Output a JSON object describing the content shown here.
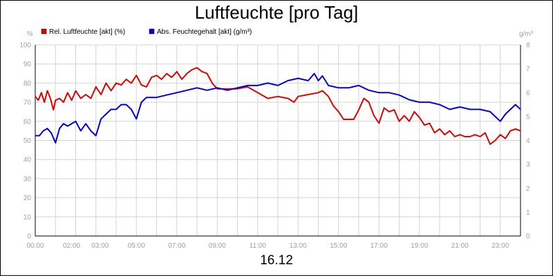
{
  "chart_data": {
    "type": "line",
    "title": "Luftfeuchte [pro Tag]",
    "date": "16.12",
    "y_left_unit": "%",
    "y_right_unit": "g/m³",
    "ylim_left": [
      0,
      100
    ],
    "ylim_right": [
      0,
      8
    ],
    "grid": true,
    "legend_position": "top-left",
    "x_ticks": [
      "00:00",
      "02:00",
      "03:00",
      "05:00",
      "07:00",
      "09:00",
      "11:00",
      "13:00",
      "15:00",
      "17:00",
      "19:00",
      "21:00",
      "23:00"
    ],
    "x_tick_hours": [
      0,
      2,
      3,
      5,
      7,
      9,
      11,
      13,
      15,
      17,
      19,
      21,
      23
    ],
    "y_ticks_left": [
      "0",
      "10",
      "20",
      "30",
      "40",
      "50",
      "60",
      "70",
      "80",
      "90",
      "100"
    ],
    "y_ticks_right": [
      "0",
      "1",
      "2",
      "3",
      "4",
      "5",
      "6",
      "7",
      "8"
    ],
    "series": [
      {
        "name": "Rel. Luftfeuchte [akt] (%)",
        "axis": "left",
        "color": "#e00000",
        "x": [
          0.0,
          0.15,
          0.3,
          0.45,
          0.6,
          0.75,
          0.9,
          1.0,
          1.2,
          1.4,
          1.6,
          1.8,
          2.0,
          2.25,
          2.5,
          2.75,
          3.0,
          3.25,
          3.5,
          3.75,
          4.0,
          4.25,
          4.5,
          4.75,
          5.0,
          5.25,
          5.5,
          5.75,
          6.0,
          6.25,
          6.5,
          6.75,
          7.0,
          7.25,
          7.5,
          7.75,
          8.0,
          8.25,
          8.5,
          8.75,
          9.0,
          9.5,
          10.0,
          10.5,
          11.0,
          11.5,
          12.0,
          12.5,
          12.8,
          13.0,
          13.5,
          14.0,
          14.2,
          14.5,
          14.75,
          15.0,
          15.25,
          15.5,
          15.75,
          16.0,
          16.25,
          16.5,
          16.75,
          17.0,
          17.25,
          17.5,
          17.75,
          18.0,
          18.25,
          18.5,
          18.75,
          19.0,
          19.25,
          19.5,
          19.75,
          20.0,
          20.25,
          20.5,
          20.75,
          21.0,
          21.25,
          21.5,
          21.75,
          22.0,
          22.25,
          22.5,
          22.75,
          23.0,
          23.25,
          23.5,
          23.75,
          24.0
        ],
        "values": [
          73,
          71,
          75,
          70,
          76,
          72,
          66,
          71,
          72,
          70,
          75,
          71,
          76,
          72,
          74,
          72,
          78,
          74,
          80,
          76,
          80,
          79,
          82,
          80,
          84,
          79,
          78,
          83,
          84,
          82,
          85,
          83,
          86,
          82,
          85,
          87,
          88,
          86,
          85,
          80,
          77,
          77,
          77,
          78,
          75,
          72,
          73,
          72,
          70,
          73,
          74,
          75,
          76,
          73,
          68,
          65,
          61,
          61,
          61,
          66,
          72,
          70,
          63,
          59,
          67,
          65,
          66,
          60,
          63,
          60,
          65,
          62,
          58,
          59,
          54,
          56,
          53,
          55,
          52,
          53,
          52,
          52,
          53,
          52,
          54,
          48,
          50,
          53,
          51,
          55,
          56,
          55
        ]
      },
      {
        "name": "Abs. Feuchtegehalt [akt] (g/m³)",
        "axis": "right",
        "color": "#0000e0",
        "x": [
          0.0,
          0.2,
          0.4,
          0.6,
          0.8,
          1.0,
          1.2,
          1.4,
          1.6,
          1.8,
          2.0,
          2.25,
          2.5,
          2.75,
          3.0,
          3.25,
          3.5,
          3.75,
          4.0,
          4.25,
          4.5,
          4.75,
          5.0,
          5.25,
          5.5,
          5.75,
          6.0,
          6.5,
          7.0,
          7.5,
          8.0,
          8.5,
          9.0,
          9.5,
          10.0,
          10.5,
          11.0,
          11.5,
          12.0,
          12.5,
          13.0,
          13.5,
          13.8,
          14.0,
          14.2,
          14.5,
          15.0,
          15.5,
          16.0,
          16.5,
          17.0,
          17.5,
          18.0,
          18.5,
          19.0,
          19.5,
          20.0,
          20.5,
          21.0,
          21.5,
          22.0,
          22.5,
          22.75,
          23.0,
          23.25,
          23.5,
          23.75,
          24.0
        ],
        "values": [
          4.2,
          4.2,
          4.4,
          4.5,
          4.3,
          3.9,
          4.5,
          4.7,
          4.6,
          4.7,
          4.8,
          4.4,
          4.7,
          4.4,
          4.2,
          4.9,
          5.1,
          5.3,
          5.3,
          5.5,
          5.5,
          5.3,
          4.9,
          5.6,
          5.8,
          5.8,
          5.8,
          5.9,
          6.0,
          6.1,
          6.2,
          6.1,
          6.2,
          6.1,
          6.2,
          6.3,
          6.3,
          6.4,
          6.3,
          6.5,
          6.6,
          6.5,
          6.8,
          6.5,
          6.7,
          6.3,
          6.2,
          6.2,
          6.3,
          6.1,
          6.0,
          6.0,
          5.9,
          5.7,
          5.6,
          5.6,
          5.5,
          5.3,
          5.4,
          5.3,
          5.3,
          5.2,
          5.0,
          4.8,
          5.1,
          5.3,
          5.5,
          5.3
        ]
      }
    ]
  }
}
